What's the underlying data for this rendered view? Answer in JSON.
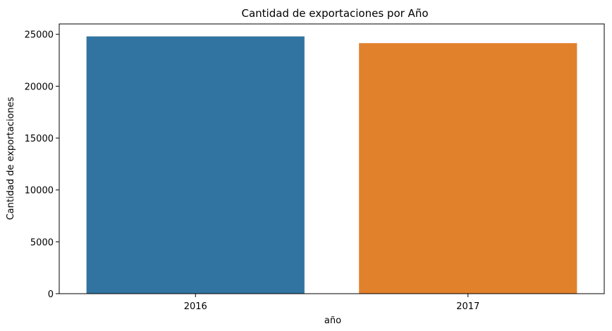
{
  "chart_data": {
    "type": "bar",
    "title": "Cantidad de exportaciones por Año",
    "xlabel": "año",
    "ylabel": "Cantidad de exportaciones",
    "categories": [
      "2016",
      "2017"
    ],
    "values": [
      24800,
      24150
    ],
    "ylim": [
      0,
      26000
    ],
    "yticks": [
      0,
      5000,
      10000,
      15000,
      20000,
      25000
    ],
    "colors": [
      "#3274a1",
      "#e1812c"
    ],
    "grid": false,
    "legend": "none"
  }
}
